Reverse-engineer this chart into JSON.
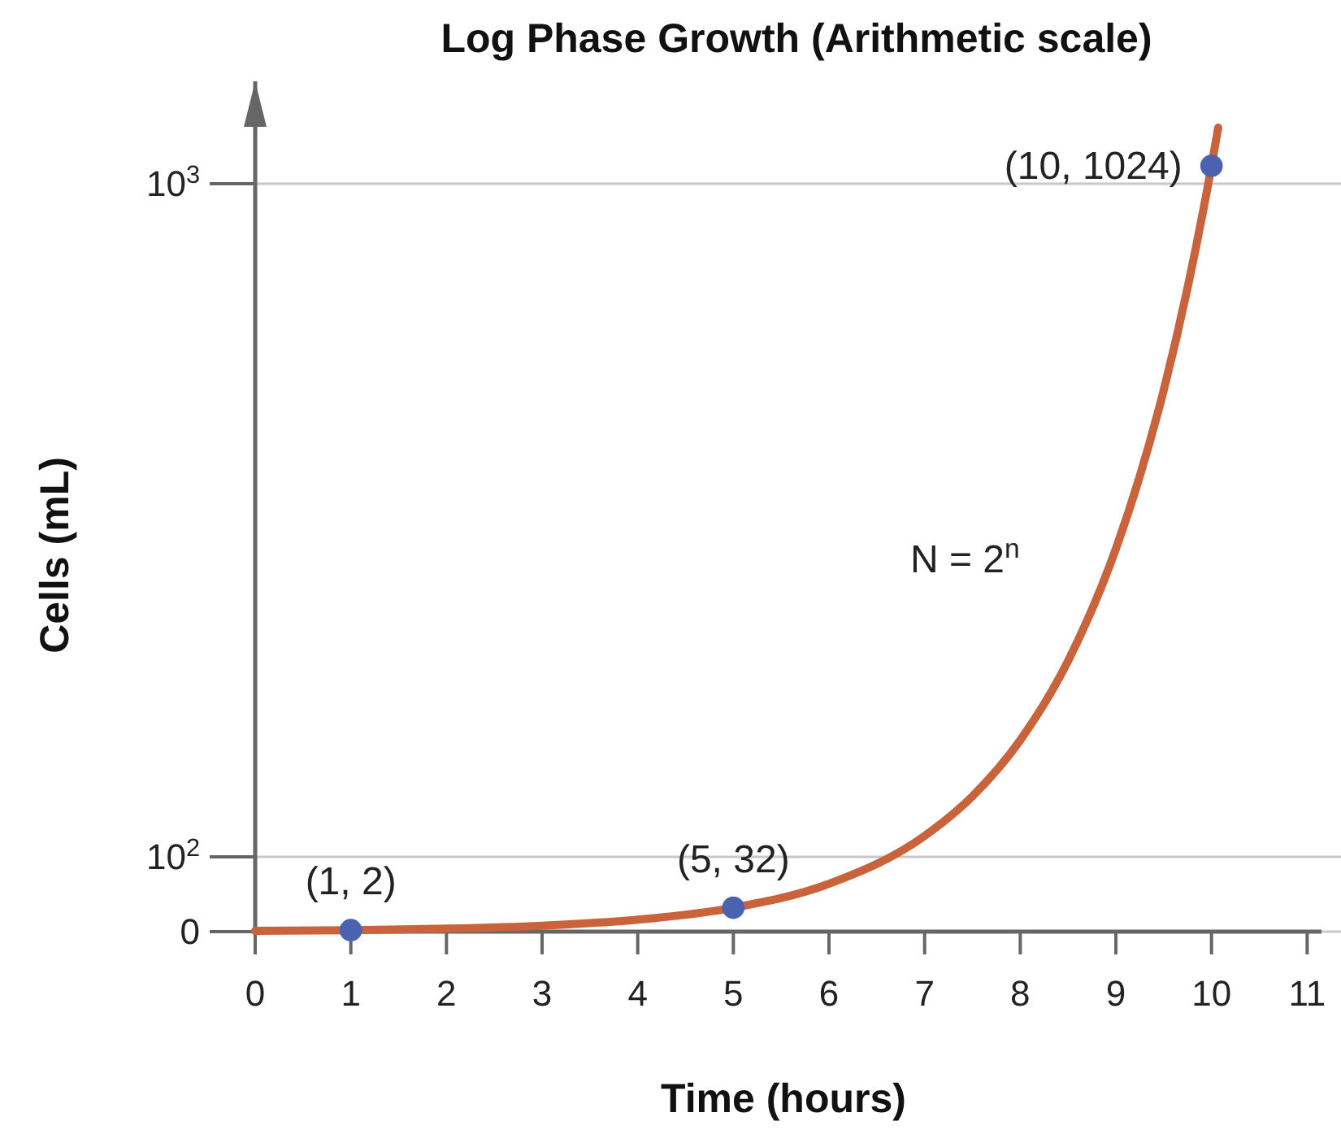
{
  "chart_data": {
    "type": "line",
    "title": "Log Phase Growth (Arithmetic scale)",
    "xlabel": "Time (hours)",
    "ylabel": "Cells (mL)",
    "xlim": [
      0,
      11.15
    ],
    "xticks": [
      0,
      1,
      2,
      3,
      4,
      5,
      6,
      7,
      8,
      9,
      10,
      11
    ],
    "ylim": [
      0,
      1137
    ],
    "yticks": [
      0,
      {
        "value": 100,
        "label": "10$^{2}$"
      },
      {
        "value": 1000,
        "label": "10$^{3}$"
      }
    ],
    "grid": "y",
    "series": [
      {
        "color": "#c8633b",
        "line_style": "solid",
        "marker": "none",
        "x": [
          0,
          1,
          2,
          3,
          4,
          5,
          6,
          7,
          7.5,
          8,
          8.5,
          9,
          9.25,
          9.5,
          9.75,
          10,
          10.07
        ],
        "values": [
          1,
          2,
          4,
          8,
          16,
          32,
          64,
          128,
          181,
          256,
          362,
          512,
          609,
          724,
          861,
          1024,
          1075
        ]
      },
      {
        "type": "scatter",
        "color": "#4a62b0",
        "marker": "circle",
        "x": [
          1,
          5,
          10
        ],
        "values": [
          2,
          32,
          1024
        ]
      }
    ],
    "annotations": [
      {
        "text": "(1, 2)",
        "x": 1,
        "y": 2
      },
      {
        "text": "(5, 32)",
        "x": 5,
        "y": 32
      },
      {
        "text": "(10, 1024)",
        "x": 10,
        "y": 1024
      },
      "N = 2$^{n}$"
    ]
  }
}
